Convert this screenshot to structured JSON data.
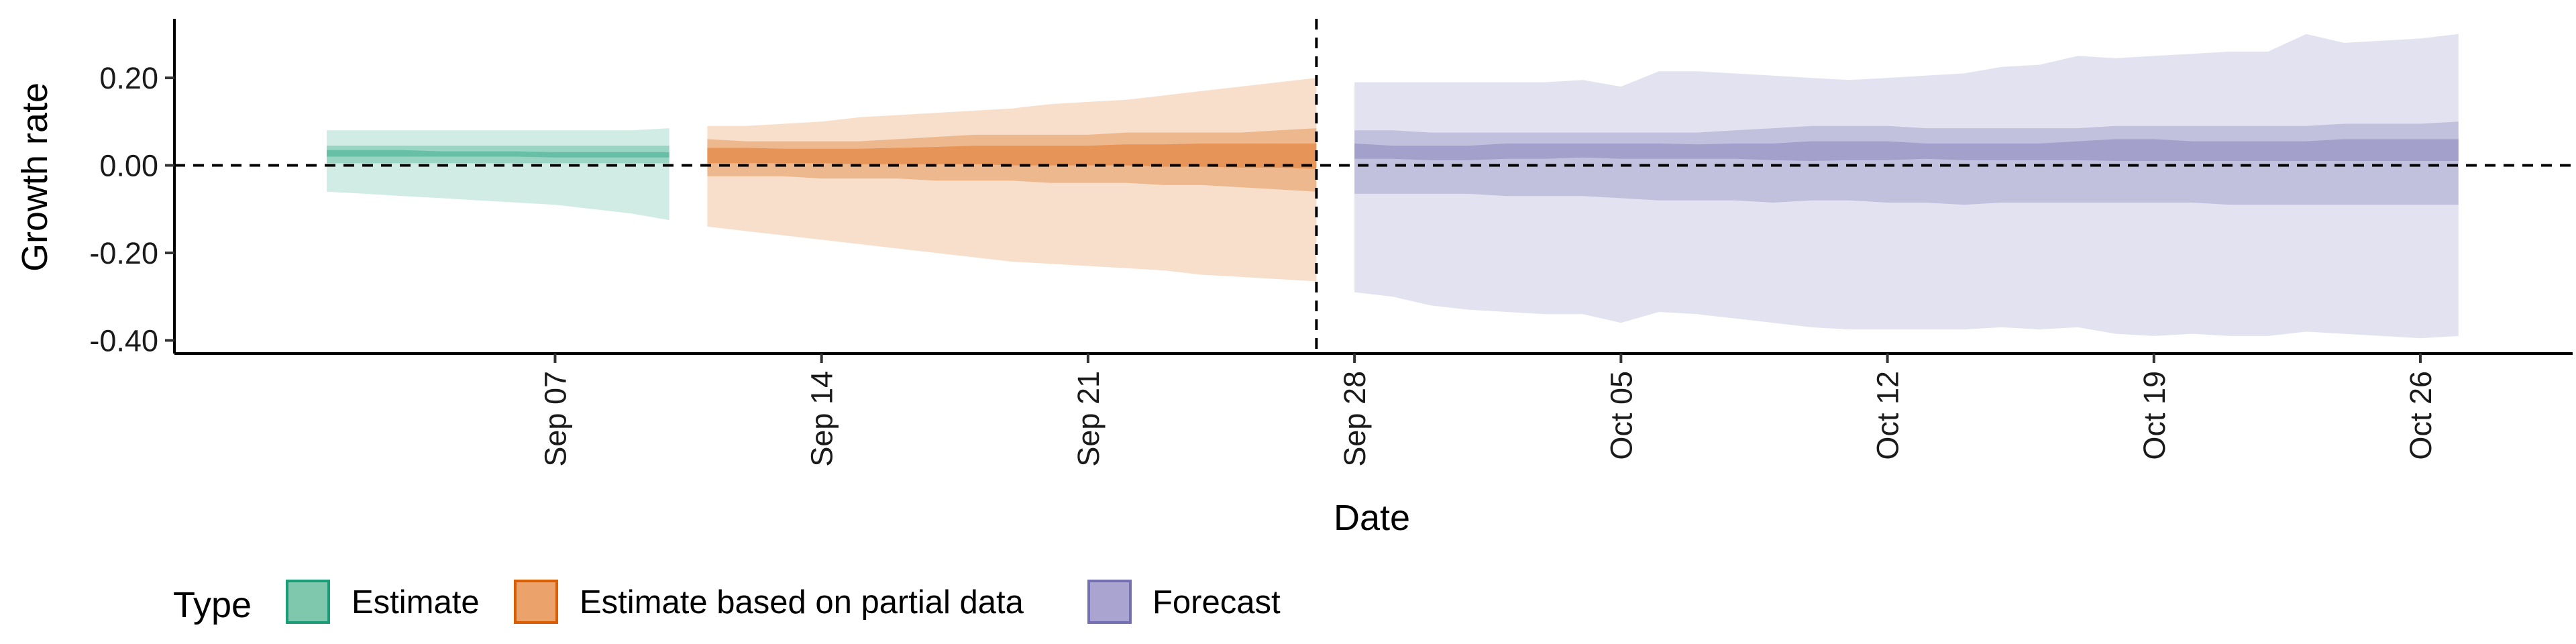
{
  "chart_data": {
    "type": "area",
    "xlabel": "Date",
    "ylabel": "Growth rate",
    "ylim": [
      -0.43,
      0.335
    ],
    "xlim": [
      "2020-08-28",
      "2020-10-30"
    ],
    "y_ticks": [
      {
        "value": 0.2,
        "label": "0.20"
      },
      {
        "value": 0.0,
        "label": "0.00"
      },
      {
        "value": -0.2,
        "label": "-0.20"
      },
      {
        "value": -0.4,
        "label": "-0.40"
      }
    ],
    "x_ticks": [
      {
        "date": "2020-09-07",
        "label": "Sep 07"
      },
      {
        "date": "2020-09-14",
        "label": "Sep 14"
      },
      {
        "date": "2020-09-21",
        "label": "Sep 21"
      },
      {
        "date": "2020-09-28",
        "label": "Sep 28"
      },
      {
        "date": "2020-10-05",
        "label": "Oct 05"
      },
      {
        "date": "2020-10-12",
        "label": "Oct 12"
      },
      {
        "date": "2020-10-19",
        "label": "Oct 19"
      },
      {
        "date": "2020-10-26",
        "label": "Oct 26"
      }
    ],
    "reference_lines": {
      "horizontal_y": 0.0,
      "vertical_x": "2020-09-27"
    },
    "legend": {
      "title": "Type",
      "position": "bottom",
      "entries": [
        {
          "label": "Estimate",
          "fill": "#7fc8ad",
          "stroke": "#1b9e77"
        },
        {
          "label": "Estimate based on partial data",
          "fill": "#eba26b",
          "stroke": "#d95f02"
        },
        {
          "label": "Forecast",
          "fill": "#aaa5d0",
          "stroke": "#7570b3"
        }
      ]
    },
    "series": [
      {
        "type_label": "Estimate",
        "color": "#1b9e77",
        "x": [
          "2020-09-01",
          "2020-09-02",
          "2020-09-03",
          "2020-09-04",
          "2020-09-05",
          "2020-09-06",
          "2020-09-07",
          "2020-09-08",
          "2020-09-09",
          "2020-09-10"
        ],
        "outer_upper": [
          0.08,
          0.08,
          0.08,
          0.08,
          0.08,
          0.08,
          0.08,
          0.08,
          0.08,
          0.085
        ],
        "outer_lower": [
          -0.06,
          -0.065,
          -0.07,
          -0.075,
          -0.08,
          -0.085,
          -0.09,
          -0.1,
          -0.11,
          -0.125
        ],
        "mid_upper": [
          0.045,
          0.045,
          0.045,
          0.045,
          0.045,
          0.045,
          0.045,
          0.045,
          0.045,
          0.045
        ],
        "mid_lower": [
          0.005,
          0.005,
          0.005,
          0.005,
          0.005,
          0.005,
          0.005,
          0.005,
          0.005,
          0.005
        ],
        "inner_upper": [
          0.035,
          0.035,
          0.035,
          0.032,
          0.032,
          0.032,
          0.03,
          0.03,
          0.03,
          0.03
        ],
        "inner_lower": [
          0.02,
          0.02,
          0.02,
          0.02,
          0.02,
          0.02,
          0.018,
          0.018,
          0.018,
          0.018
        ]
      },
      {
        "type_label": "Estimate based on partial data",
        "color": "#d95f02",
        "x": [
          "2020-09-11",
          "2020-09-12",
          "2020-09-13",
          "2020-09-14",
          "2020-09-15",
          "2020-09-16",
          "2020-09-17",
          "2020-09-18",
          "2020-09-19",
          "2020-09-20",
          "2020-09-21",
          "2020-09-22",
          "2020-09-23",
          "2020-09-24",
          "2020-09-25",
          "2020-09-26",
          "2020-09-27"
        ],
        "outer_upper": [
          0.09,
          0.09,
          0.095,
          0.1,
          0.11,
          0.115,
          0.12,
          0.125,
          0.13,
          0.14,
          0.145,
          0.15,
          0.16,
          0.17,
          0.18,
          0.19,
          0.2
        ],
        "outer_lower": [
          -0.14,
          -0.15,
          -0.16,
          -0.17,
          -0.18,
          -0.19,
          -0.2,
          -0.21,
          -0.22,
          -0.225,
          -0.23,
          -0.235,
          -0.24,
          -0.25,
          -0.255,
          -0.26,
          -0.265
        ],
        "mid_upper": [
          0.06,
          0.055,
          0.055,
          0.055,
          0.055,
          0.06,
          0.065,
          0.07,
          0.07,
          0.07,
          0.07,
          0.075,
          0.075,
          0.075,
          0.075,
          0.08,
          0.085
        ],
        "mid_lower": [
          -0.025,
          -0.025,
          -0.025,
          -0.03,
          -0.03,
          -0.03,
          -0.035,
          -0.035,
          -0.035,
          -0.04,
          -0.04,
          -0.04,
          -0.045,
          -0.045,
          -0.05,
          -0.055,
          -0.06
        ],
        "inner_upper": [
          0.04,
          0.04,
          0.038,
          0.038,
          0.038,
          0.04,
          0.042,
          0.045,
          0.045,
          0.045,
          0.045,
          0.048,
          0.048,
          0.05,
          0.05,
          0.05,
          0.05
        ],
        "inner_lower": [
          0.005,
          0.005,
          0.005,
          0.005,
          0.003,
          0.003,
          0.003,
          0.003,
          0.0,
          0.0,
          0.0,
          0.0,
          -0.003,
          -0.003,
          -0.005,
          -0.005,
          -0.008
        ]
      },
      {
        "type_label": "Forecast",
        "color": "#7570b3",
        "x": [
          "2020-09-28",
          "2020-09-29",
          "2020-09-30",
          "2020-10-01",
          "2020-10-02",
          "2020-10-03",
          "2020-10-04",
          "2020-10-05",
          "2020-10-06",
          "2020-10-07",
          "2020-10-08",
          "2020-10-09",
          "2020-10-10",
          "2020-10-11",
          "2020-10-12",
          "2020-10-13",
          "2020-10-14",
          "2020-10-15",
          "2020-10-16",
          "2020-10-17",
          "2020-10-18",
          "2020-10-19",
          "2020-10-20",
          "2020-10-21",
          "2020-10-22",
          "2020-10-23",
          "2020-10-24",
          "2020-10-25",
          "2020-10-26",
          "2020-10-27"
        ],
        "outer_upper": [
          0.19,
          0.19,
          0.19,
          0.19,
          0.19,
          0.19,
          0.195,
          0.18,
          0.215,
          0.215,
          0.21,
          0.205,
          0.2,
          0.195,
          0.2,
          0.205,
          0.21,
          0.225,
          0.23,
          0.25,
          0.245,
          0.25,
          0.255,
          0.26,
          0.26,
          0.3,
          0.28,
          0.285,
          0.29,
          0.3
        ],
        "outer_lower": [
          -0.29,
          -0.3,
          -0.32,
          -0.33,
          -0.335,
          -0.34,
          -0.34,
          -0.36,
          -0.335,
          -0.34,
          -0.35,
          -0.36,
          -0.37,
          -0.375,
          -0.375,
          -0.375,
          -0.375,
          -0.37,
          -0.375,
          -0.37,
          -0.385,
          -0.39,
          -0.385,
          -0.39,
          -0.39,
          -0.38,
          -0.385,
          -0.39,
          -0.395,
          -0.39
        ],
        "mid_upper": [
          0.08,
          0.08,
          0.075,
          0.075,
          0.075,
          0.075,
          0.075,
          0.075,
          0.075,
          0.075,
          0.08,
          0.085,
          0.09,
          0.09,
          0.09,
          0.085,
          0.085,
          0.085,
          0.085,
          0.085,
          0.09,
          0.09,
          0.09,
          0.09,
          0.09,
          0.09,
          0.095,
          0.095,
          0.095,
          0.1
        ],
        "mid_lower": [
          -0.065,
          -0.065,
          -0.065,
          -0.065,
          -0.07,
          -0.07,
          -0.07,
          -0.075,
          -0.08,
          -0.08,
          -0.08,
          -0.085,
          -0.08,
          -0.08,
          -0.085,
          -0.085,
          -0.09,
          -0.085,
          -0.085,
          -0.085,
          -0.085,
          -0.085,
          -0.085,
          -0.09,
          -0.09,
          -0.09,
          -0.09,
          -0.09,
          -0.09,
          -0.09
        ],
        "inner_upper": [
          0.05,
          0.045,
          0.045,
          0.045,
          0.05,
          0.05,
          0.05,
          0.05,
          0.05,
          0.048,
          0.05,
          0.05,
          0.055,
          0.055,
          0.055,
          0.05,
          0.05,
          0.05,
          0.05,
          0.055,
          0.06,
          0.06,
          0.055,
          0.055,
          0.055,
          0.055,
          0.06,
          0.06,
          0.06,
          0.06
        ],
        "inner_lower": [
          0.015,
          0.015,
          0.012,
          0.012,
          0.015,
          0.015,
          0.018,
          0.015,
          0.015,
          0.015,
          0.015,
          0.012,
          0.01,
          0.012,
          0.012,
          0.015,
          0.012,
          0.012,
          0.012,
          0.012,
          0.01,
          0.01,
          0.01,
          0.01,
          0.01,
          0.01,
          0.01,
          0.01,
          0.01,
          0.01
        ]
      }
    ]
  }
}
